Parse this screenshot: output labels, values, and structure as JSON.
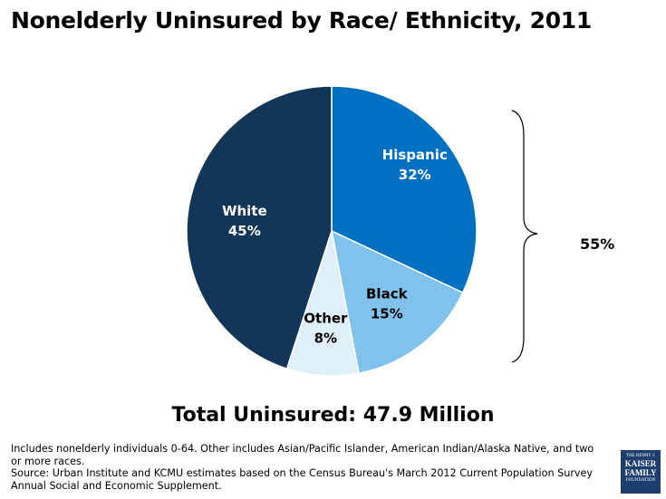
{
  "title": "Nonelderly Uninsured by Race/ Ethnicity, 2011",
  "chart_data": {
    "type": "pie",
    "categories": [
      "Hispanic",
      "Black",
      "Other",
      "White"
    ],
    "values": [
      32,
      15,
      8,
      45
    ],
    "value_labels": [
      "32%",
      "15%",
      "8%",
      "45%"
    ],
    "colors": [
      "#0071c2",
      "#7fc3ec",
      "#e0f0fa",
      "#133658"
    ],
    "label_colors": [
      "#ffffff",
      "#000000",
      "#000000",
      "#ffffff"
    ],
    "annotation": "55%"
  },
  "total_label": "Total Uninsured: 47.9 Million",
  "notes": {
    "line1": "Includes nonelderly individuals 0-64. Other includes Asian/Pacific Islander, American Indian/Alaska Native, and two or more races.",
    "line2": "Source: Urban Institute and KCMU estimates based on the Census Bureau's March 2012 Current Population Survey  Annual Social and Economic Supplement."
  },
  "logo": {
    "line1": "THE HENRY J.",
    "line2": "KAISER",
    "line3": "FAMILY",
    "line4": "FOUNDATION"
  }
}
